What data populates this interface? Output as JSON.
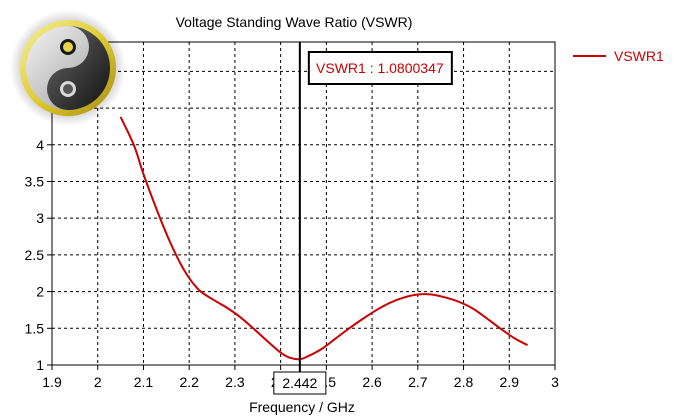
{
  "chart_data": {
    "type": "line",
    "title": "Voltage Standing Wave Ratio (VSWR)",
    "xlabel": "Frequency / GHz",
    "ylabel": "",
    "xlim": [
      1.9,
      3.0
    ],
    "ylim": [
      1,
      5.4
    ],
    "x_ticks": [
      "1.9",
      "2",
      "2.1",
      "2.2",
      "2.3",
      "2.4",
      "2.5",
      "2.6",
      "2.7",
      "2.8",
      "2.9",
      "3"
    ],
    "y_ticks": [
      "1",
      "1.5",
      "2",
      "2.5",
      "3",
      "3.5",
      "4"
    ],
    "grid": true,
    "legend_position": "right",
    "series": [
      {
        "name": "VSWR1",
        "color": "#cc0000",
        "x": [
          2.05,
          2.08,
          2.1,
          2.13,
          2.16,
          2.19,
          2.22,
          2.25,
          2.28,
          2.31,
          2.34,
          2.37,
          2.4,
          2.42,
          2.442,
          2.46,
          2.49,
          2.52,
          2.55,
          2.58,
          2.61,
          2.64,
          2.67,
          2.7,
          2.73,
          2.76,
          2.79,
          2.82,
          2.85,
          2.88,
          2.91,
          2.94
        ],
        "y": [
          4.38,
          3.98,
          3.6,
          3.1,
          2.65,
          2.28,
          2.03,
          1.9,
          1.79,
          1.66,
          1.5,
          1.33,
          1.17,
          1.1,
          1.08,
          1.12,
          1.22,
          1.36,
          1.5,
          1.63,
          1.75,
          1.85,
          1.92,
          1.96,
          1.96,
          1.92,
          1.86,
          1.77,
          1.64,
          1.5,
          1.37,
          1.27
        ]
      }
    ],
    "marker": {
      "x": 2.442,
      "x_label": "2.442",
      "readout": "VSWR1 : 1.0800347"
    }
  }
}
